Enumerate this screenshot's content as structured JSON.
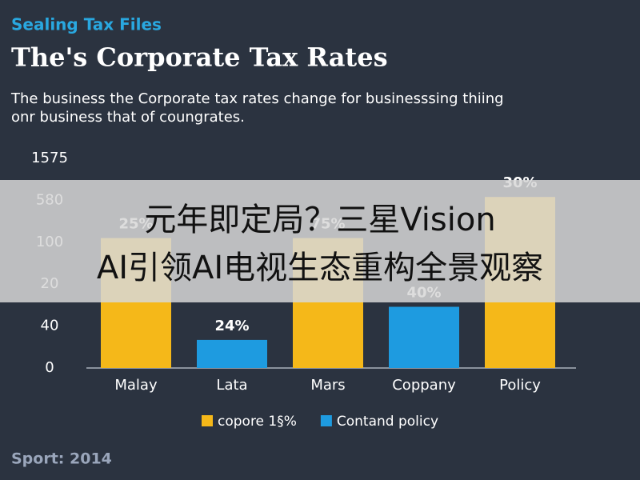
{
  "chart_data": {
    "type": "bar",
    "kicker": "Sealing Tax Files",
    "title": "The's Corporate Tax Rates",
    "subtitle": [
      "The business the Corporate tax rates change for businesssing thiing",
      "onr business that of coungrates."
    ],
    "categories": [
      "Malay",
      "Lata",
      "Mars",
      "Coppany",
      "Policy"
    ],
    "series": [
      {
        "name": "copore 1§%",
        "color": "#f5b819",
        "values": [
          3.1,
          null,
          3.1,
          null,
          4.08
        ]
      },
      {
        "name": "Contand policy",
        "color": "#1e9be0",
        "values": [
          null,
          0.67,
          null,
          1.46,
          null
        ]
      }
    ],
    "bar_labels": [
      "25%",
      "24%",
      "75%",
      "40%",
      "30%"
    ],
    "ylim": [
      0,
      5
    ],
    "yticks": [
      {
        "value": 0,
        "label": "0"
      },
      {
        "value": 1,
        "label": "40"
      },
      {
        "value": 2,
        "label": "20"
      },
      {
        "value": 3,
        "label": "100"
      },
      {
        "value": 4,
        "label": "580"
      },
      {
        "value": 5,
        "label": "1575"
      }
    ],
    "grid": false,
    "footer": "Sport: 2014",
    "overlay": [
      "元年即定局？三星Vision",
      "AI引领AI电视生态重构全景观察"
    ]
  }
}
